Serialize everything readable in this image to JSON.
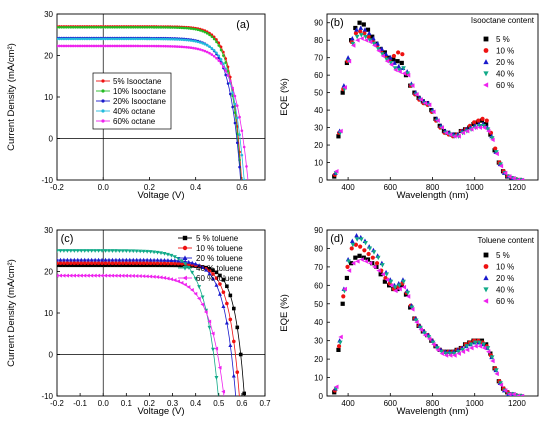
{
  "chart_data": [
    {
      "panel": "(a)",
      "type": "line",
      "xlabel": "Voltage (V)",
      "ylabel": "Current Density (mA/cm²)",
      "xlim": [
        -0.2,
        0.7
      ],
      "ylim": [
        -10,
        30
      ],
      "xticks": [
        -0.2,
        0.0,
        0.2,
        0.4,
        0.6
      ],
      "yticks": [
        -10,
        0,
        10,
        20,
        30
      ],
      "legend_position": "lower-left",
      "series": [
        {
          "name": "5% Isooctane",
          "color": "#ee1111",
          "marker": "circle",
          "jsc": 27.0,
          "voc": 0.585,
          "n": 1.7
        },
        {
          "name": "10% Isooctane",
          "color": "#22bb22",
          "marker": "circle",
          "jsc": 26.8,
          "voc": 0.582,
          "n": 1.75
        },
        {
          "name": "20% Isooctane",
          "color": "#1a1acc",
          "marker": "circle",
          "jsc": 24.2,
          "voc": 0.578,
          "n": 1.85
        },
        {
          "name": "40% octane",
          "color": "#22bbdd",
          "marker": "circle",
          "jsc": 24.0,
          "voc": 0.592,
          "n": 2.0
        },
        {
          "name": "60% octane",
          "color": "#ee22ee",
          "marker": "circle",
          "jsc": 22.3,
          "voc": 0.605,
          "n": 2.2
        }
      ]
    },
    {
      "panel": "(b)",
      "type": "scatter",
      "title": "Isooctane content",
      "xlabel": "Wavelength (nm)",
      "ylabel": "EQE (%)",
      "xlim": [
        300,
        1300
      ],
      "ylim": [
        0,
        95
      ],
      "xticks": [
        400,
        600,
        800,
        1000,
        1200
      ],
      "yticks": [
        0,
        10,
        20,
        30,
        40,
        50,
        60,
        70,
        80,
        90
      ],
      "legend_position": "top-right",
      "x": [
        340,
        360,
        380,
        400,
        420,
        440,
        460,
        480,
        500,
        520,
        540,
        560,
        580,
        600,
        620,
        640,
        660,
        680,
        700,
        720,
        740,
        760,
        780,
        800,
        820,
        840,
        860,
        880,
        900,
        920,
        940,
        960,
        980,
        1000,
        1020,
        1040,
        1060,
        1080,
        1100,
        1120,
        1140,
        1160,
        1180,
        1200,
        1220
      ],
      "series": [
        {
          "name": "5 %",
          "color": "#000000",
          "marker": "square",
          "values": [
            2,
            25,
            50,
            67,
            80,
            87,
            90,
            89,
            86,
            82,
            78,
            75,
            73,
            70,
            69,
            68,
            67,
            60,
            54,
            50,
            47,
            45,
            44,
            40,
            35,
            31,
            28,
            27,
            26,
            26,
            28,
            29,
            30,
            32,
            33,
            34,
            32,
            26,
            17,
            10,
            5,
            2,
            1,
            0,
            0
          ]
        },
        {
          "name": "10 %",
          "color": "#ee1111",
          "marker": "circle",
          "values": [
            3,
            27,
            52,
            68,
            79,
            84,
            85,
            84,
            82,
            80,
            77,
            74,
            71,
            69,
            71,
            73,
            72,
            61,
            54,
            49,
            46,
            44,
            43,
            39,
            34,
            30,
            27,
            26,
            25,
            26,
            28,
            29,
            31,
            33,
            34,
            35,
            34,
            27,
            18,
            10,
            5,
            2,
            1,
            0,
            0
          ]
        },
        {
          "name": "20 %",
          "color": "#1a1acc",
          "marker": "triangle-up",
          "values": [
            4,
            28,
            54,
            70,
            81,
            86,
            87,
            86,
            84,
            81,
            78,
            75,
            72,
            70,
            67,
            65,
            64,
            62,
            55,
            50,
            47,
            45,
            44,
            40,
            35,
            31,
            28,
            27,
            26,
            26,
            28,
            29,
            30,
            31,
            32,
            32,
            30,
            25,
            16,
            9,
            4,
            2,
            1,
            0,
            0
          ]
        },
        {
          "name": "40 %",
          "color": "#11aa88",
          "marker": "triangle-down",
          "values": [
            4,
            27,
            52,
            68,
            78,
            82,
            83,
            82,
            80,
            78,
            75,
            72,
            69,
            67,
            64,
            63,
            64,
            61,
            54,
            49,
            46,
            44,
            43,
            39,
            34,
            30,
            27,
            26,
            25,
            25,
            27,
            28,
            29,
            30,
            31,
            31,
            29,
            24,
            16,
            9,
            4,
            2,
            1,
            0,
            0
          ]
        },
        {
          "name": "60 %",
          "color": "#ee22ee",
          "marker": "triangle-left",
          "values": [
            5,
            28,
            53,
            68,
            77,
            80,
            81,
            80,
            79,
            77,
            74,
            71,
            68,
            66,
            63,
            62,
            61,
            60,
            54,
            49,
            46,
            44,
            43,
            39,
            34,
            30,
            27,
            26,
            25,
            25,
            27,
            28,
            29,
            30,
            30,
            30,
            28,
            23,
            15,
            8,
            4,
            2,
            1,
            0,
            0
          ]
        }
      ]
    },
    {
      "panel": "(c)",
      "type": "line",
      "xlabel": "Voltage (V)",
      "ylabel": "Current Density (mA/cm²)",
      "xlim": [
        -0.2,
        0.7
      ],
      "ylim": [
        -10,
        30
      ],
      "xticks": [
        -0.2,
        -0.1,
        0.0,
        0.1,
        0.2,
        0.3,
        0.4,
        0.5,
        0.6,
        0.7
      ],
      "yticks": [
        -10,
        0,
        10,
        20,
        30
      ],
      "legend_position": "top-right",
      "series": [
        {
          "name": "5 % toluene",
          "color": "#000000",
          "marker": "square",
          "jsc": 21.5,
          "voc": 0.595,
          "n": 1.6
        },
        {
          "name": "10 % toluene",
          "color": "#ee1111",
          "marker": "circle",
          "jsc": 22.0,
          "voc": 0.572,
          "n": 1.75
        },
        {
          "name": "20 % toluene",
          "color": "#1a1acc",
          "marker": "triangle-up",
          "jsc": 22.8,
          "voc": 0.555,
          "n": 1.9
        },
        {
          "name": "40 % toluene",
          "color": "#11aa88",
          "marker": "triangle-down",
          "jsc": 25.0,
          "voc": 0.478,
          "n": 2.3
        },
        {
          "name": "60 % toluene",
          "color": "#ee22ee",
          "marker": "triangle-left",
          "jsc": 19.0,
          "voc": 0.495,
          "n": 2.5
        }
      ]
    },
    {
      "panel": "(d)",
      "type": "scatter",
      "title": "Toluene content",
      "xlabel": "Wavelength (nm)",
      "ylabel": "EQE (%)",
      "xlim": [
        300,
        1300
      ],
      "ylim": [
        0,
        90
      ],
      "xticks": [
        400,
        600,
        800,
        1000,
        1200
      ],
      "yticks": [
        0,
        10,
        20,
        30,
        40,
        50,
        60,
        70,
        80,
        90
      ],
      "legend_position": "top-right",
      "x": [
        340,
        360,
        380,
        400,
        420,
        440,
        460,
        480,
        500,
        520,
        540,
        560,
        580,
        600,
        620,
        640,
        660,
        680,
        700,
        720,
        740,
        760,
        780,
        800,
        820,
        840,
        860,
        880,
        900,
        920,
        940,
        960,
        980,
        1000,
        1020,
        1040,
        1060,
        1080,
        1100,
        1120,
        1140,
        1160,
        1180,
        1200,
        1220
      ],
      "series": [
        {
          "name": "5 %",
          "color": "#000000",
          "marker": "square",
          "values": [
            2,
            25,
            50,
            64,
            72,
            75,
            76,
            75,
            74,
            72,
            70,
            66,
            62,
            60,
            58,
            58,
            60,
            55,
            48,
            42,
            38,
            35,
            33,
            30,
            27,
            25,
            24,
            24,
            24,
            25,
            26,
            28,
            29,
            30,
            30,
            30,
            28,
            23,
            15,
            8,
            4,
            2,
            1,
            0,
            0
          ]
        },
        {
          "name": "10 %",
          "color": "#ee1111",
          "marker": "circle",
          "values": [
            3,
            27,
            54,
            70,
            80,
            82,
            81,
            79,
            77,
            75,
            72,
            68,
            64,
            61,
            58,
            59,
            61,
            56,
            49,
            42,
            38,
            35,
            33,
            30,
            27,
            25,
            24,
            24,
            24,
            25,
            26,
            28,
            29,
            30,
            30,
            29,
            27,
            22,
            15,
            8,
            4,
            2,
            1,
            0,
            0
          ]
        },
        {
          "name": "20 %",
          "color": "#1a1acc",
          "marker": "triangle-up",
          "values": [
            4,
            30,
            58,
            74,
            84,
            87,
            86,
            84,
            81,
            79,
            76,
            72,
            67,
            63,
            60,
            61,
            63,
            57,
            49,
            42,
            38,
            35,
            33,
            30,
            27,
            25,
            24,
            24,
            24,
            25,
            26,
            27,
            28,
            29,
            29,
            28,
            26,
            21,
            14,
            7,
            3,
            1,
            1,
            0,
            0
          ]
        },
        {
          "name": "40 %",
          "color": "#11aa88",
          "marker": "triangle-down",
          "values": [
            4,
            29,
            57,
            73,
            82,
            85,
            85,
            83,
            80,
            78,
            75,
            71,
            66,
            62,
            59,
            60,
            62,
            56,
            48,
            41,
            37,
            34,
            32,
            29,
            26,
            24,
            23,
            23,
            23,
            24,
            25,
            27,
            28,
            29,
            29,
            28,
            26,
            21,
            14,
            7,
            3,
            1,
            1,
            0,
            0
          ]
        },
        {
          "name": "60 %",
          "color": "#ee22ee",
          "marker": "triangle-left",
          "values": [
            5,
            32,
            58,
            68,
            72,
            73,
            74,
            73,
            72,
            70,
            68,
            66,
            63,
            60,
            57,
            58,
            59,
            54,
            47,
            40,
            36,
            33,
            31,
            28,
            25,
            23,
            22,
            22,
            22,
            23,
            24,
            25,
            26,
            27,
            27,
            26,
            24,
            19,
            12,
            6,
            3,
            1,
            1,
            0,
            0
          ]
        }
      ]
    }
  ]
}
